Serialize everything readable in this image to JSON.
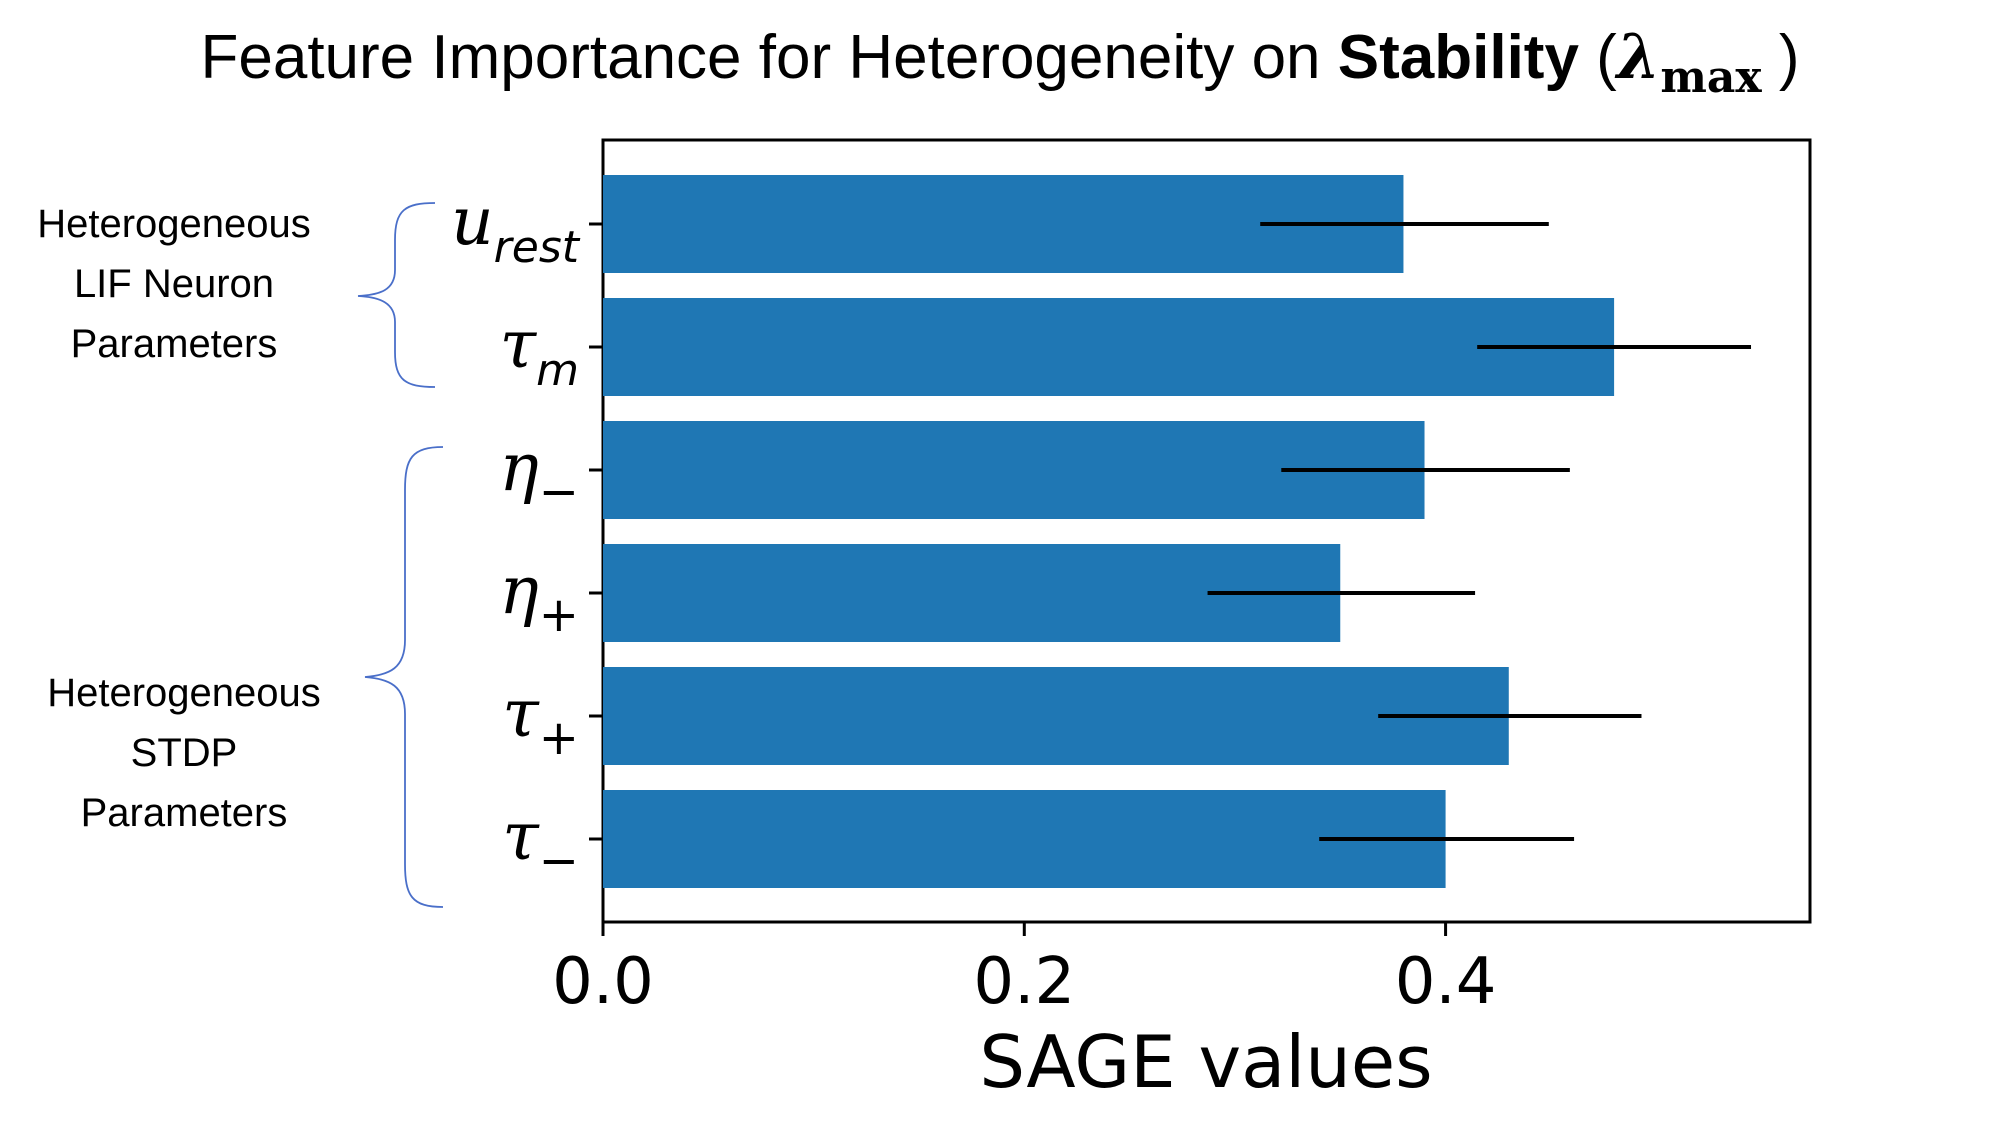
{
  "chart_data": {
    "type": "bar",
    "orientation": "horizontal",
    "title": {
      "prefix": "Feature Importance for Heterogeneity on ",
      "bold": "Stability",
      "symbol": "λ",
      "subscript": "max"
    },
    "xlabel": "SAGE values",
    "xlim": [
      0.0,
      0.573
    ],
    "xticks": [
      "0.0",
      "0.2",
      "0.4"
    ],
    "grid": false,
    "bar_color": "#1f77b4",
    "errorbar_color": "#000000",
    "categories": [
      {
        "symbol": "u",
        "sub": "rest",
        "sub_style": "italic",
        "value": 0.38,
        "err_low": 0.312,
        "err_high": 0.449
      },
      {
        "symbol": "τ",
        "sub": "m",
        "sub_style": "italic",
        "value": 0.48,
        "err_low": 0.415,
        "err_high": 0.545
      },
      {
        "symbol": "η",
        "sub": "−",
        "sub_style": "upright",
        "value": 0.39,
        "err_low": 0.322,
        "err_high": 0.459
      },
      {
        "symbol": "η",
        "sub": "+",
        "sub_style": "upright",
        "value": 0.35,
        "err_low": 0.287,
        "err_high": 0.414
      },
      {
        "symbol": "τ",
        "sub": "+",
        "sub_style": "upright",
        "value": 0.43,
        "err_low": 0.368,
        "err_high": 0.493
      },
      {
        "symbol": "τ",
        "sub": "−",
        "sub_style": "upright",
        "value": 0.4,
        "err_low": 0.34,
        "err_high": 0.461
      }
    ],
    "groups": [
      {
        "lines": [
          "Heterogeneous",
          "LIF Neuron",
          "Parameters"
        ]
      },
      {
        "lines": [
          "Heterogeneous",
          "STDP",
          "Parameters"
        ]
      }
    ]
  }
}
